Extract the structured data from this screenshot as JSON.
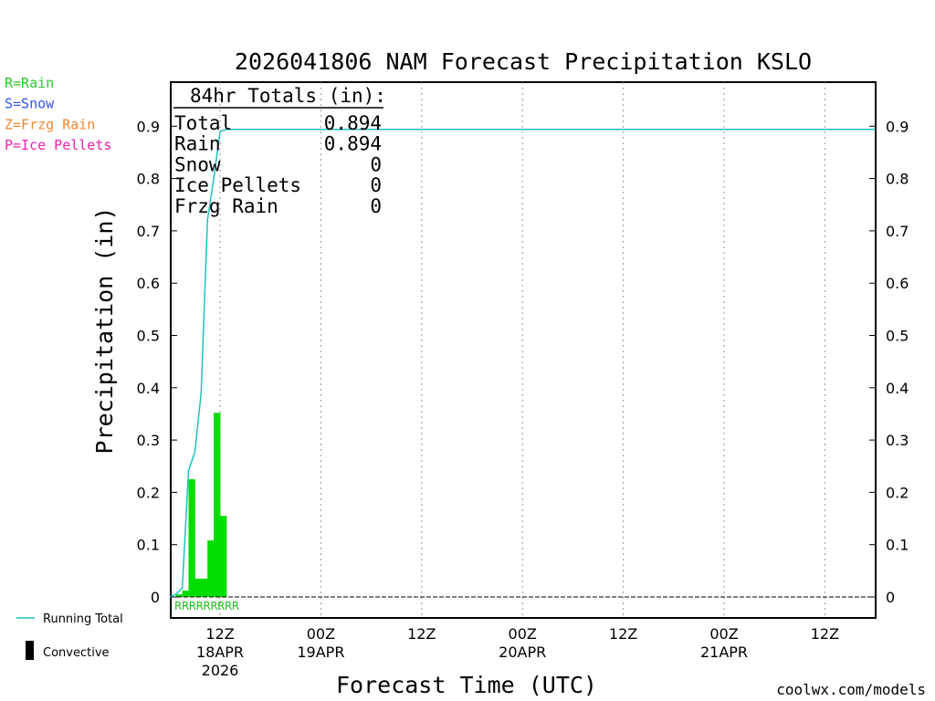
{
  "chart_data": {
    "type": "bar",
    "title": "2026041806 NAM Forecast Precipitation KSLO",
    "xlabel": "Forecast Time (UTC)",
    "ylabel": "Precipitation (in)",
    "ylim": [
      0,
      0.99
    ],
    "yticks": [
      "0",
      "0.1",
      "0.2",
      "0.3",
      "0.4",
      "0.5",
      "0.6",
      "0.7",
      "0.8",
      "0.9"
    ],
    "x_axis": {
      "start": "2026-04-18 06Z",
      "ticks": [
        {
          "hour": 6,
          "top": "12Z",
          "middle": "18APR",
          "bottom": "2026"
        },
        {
          "hour": 18,
          "top": "00Z",
          "middle": "19APR",
          "bottom": ""
        },
        {
          "hour": 30,
          "top": "12Z",
          "middle": "",
          "bottom": ""
        },
        {
          "hour": 42,
          "top": "00Z",
          "middle": "20APR",
          "bottom": ""
        },
        {
          "hour": 54,
          "top": "12Z",
          "middle": "",
          "bottom": ""
        },
        {
          "hour": 66,
          "top": "00Z",
          "middle": "21APR",
          "bottom": ""
        },
        {
          "hour": 78,
          "top": "12Z",
          "middle": "",
          "bottom": ""
        }
      ]
    },
    "grid": "vertical dotted",
    "bars": {
      "name": "Convective",
      "color": "#00dd00",
      "x": [
        0,
        0.75,
        1.5,
        2.25,
        3.0,
        3.75,
        4.5,
        5.25,
        6.0,
        6.75
      ],
      "values": [
        0.0,
        0.005,
        0.012,
        0.225,
        0.035,
        0.035,
        0.108,
        0.352,
        0.155,
        0.0
      ]
    },
    "series": [
      {
        "name": "Running Total",
        "color": "#20c0c0",
        "x": [
          0,
          0.75,
          1.5,
          2.25,
          3.0,
          3.75,
          4.5,
          5.25,
          6.0,
          6.75,
          84
        ],
        "values": [
          0.0,
          0.005,
          0.017,
          0.242,
          0.277,
          0.39,
          0.72,
          0.8,
          0.89,
          0.894,
          0.894
        ]
      }
    ],
    "ptype_markers": "RRRRRRRRR",
    "totals": {
      "header": "84hr Totals (in):",
      "rows": [
        {
          "label": "Total",
          "value": "0.894"
        },
        {
          "label": "Rain",
          "value": "0.894"
        },
        {
          "label": "Snow",
          "value": "0"
        },
        {
          "label": "Ice Pellets",
          "value": "0"
        },
        {
          "label": "Frzg Rain",
          "value": "0"
        }
      ]
    },
    "ptype_legend": [
      {
        "text": "R=Rain",
        "color": "#22cc22"
      },
      {
        "text": "S=Snow",
        "color": "#3355ee"
      },
      {
        "text": "Z=Frzg Rain",
        "color": "#ee8833"
      },
      {
        "text": "P=Ice Pellets",
        "color": "#ee22aa"
      }
    ],
    "legend": {
      "running_total": "Running Total",
      "convective": "Convective"
    },
    "credit": "coolwx.com/models",
    "credit_color": "#dd2222"
  }
}
